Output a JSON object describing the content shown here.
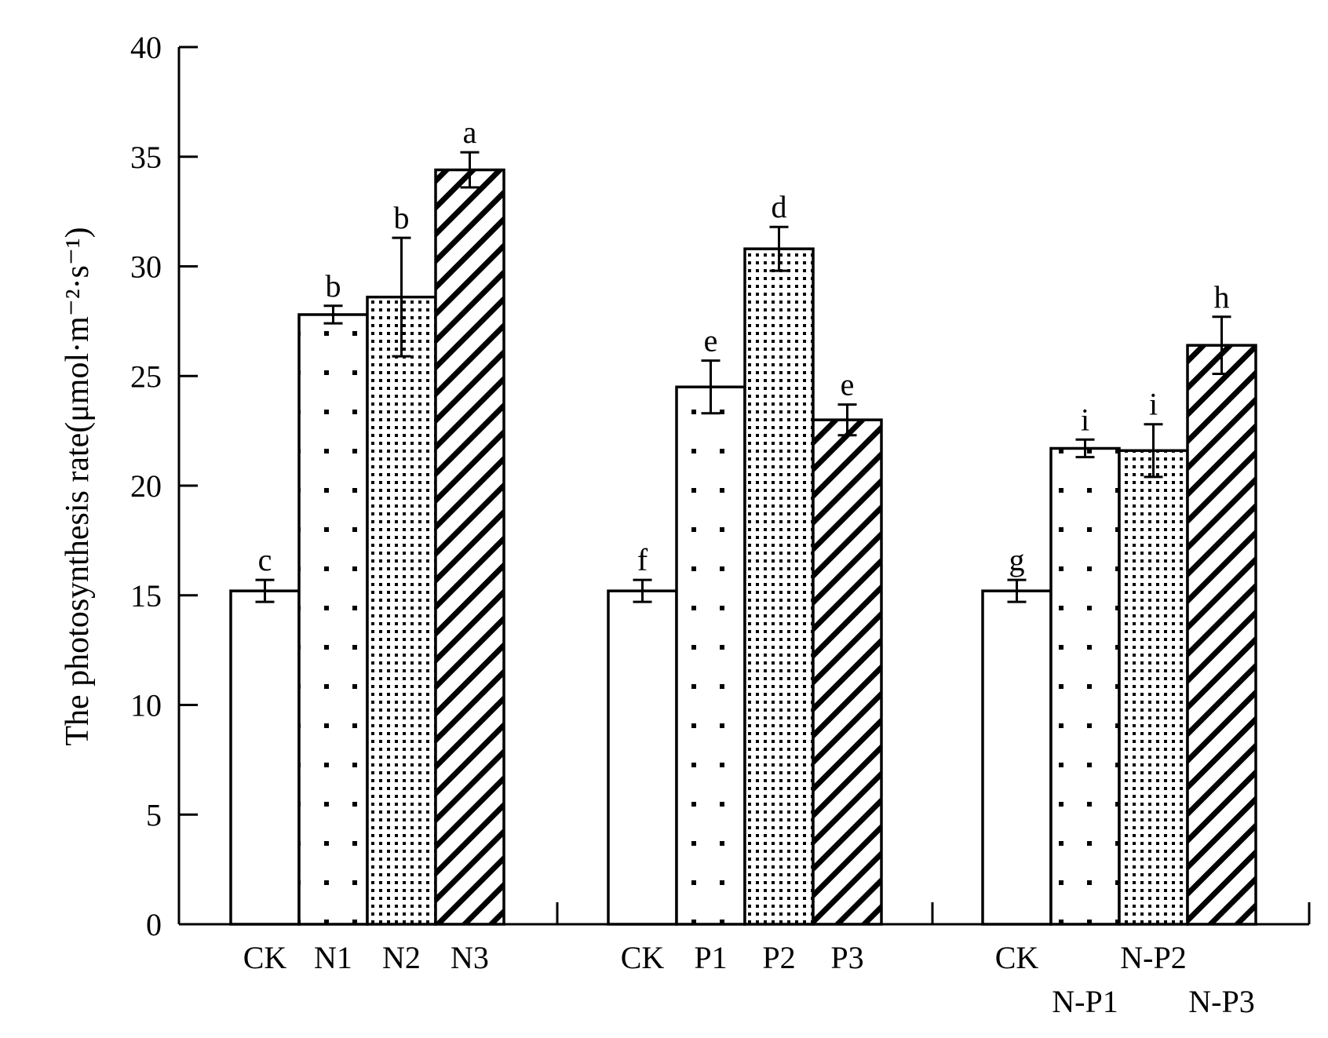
{
  "chart_data": {
    "type": "bar",
    "ylabel": "The photosynthesis rate(μmol·m⁻²·s⁻¹)",
    "ylim": [
      0,
      40
    ],
    "yticks": [
      0,
      5,
      10,
      15,
      20,
      25,
      30,
      35,
      40
    ],
    "grid": false,
    "groups": [
      {
        "bars": [
          {
            "category": "CK",
            "value": 15.2,
            "error": 0.5,
            "sig": "c",
            "pattern": "none"
          },
          {
            "category": "N1",
            "value": 27.8,
            "error": 0.4,
            "sig": "b",
            "pattern": "sparse-dots"
          },
          {
            "category": "N2",
            "value": 28.6,
            "error": 2.7,
            "sig": "b",
            "pattern": "dense-dots"
          },
          {
            "category": "N3",
            "value": 34.4,
            "error": 0.8,
            "sig": "a",
            "pattern": "diagonal-lines"
          }
        ]
      },
      {
        "bars": [
          {
            "category": "CK",
            "value": 15.2,
            "error": 0.5,
            "sig": "f",
            "pattern": "none"
          },
          {
            "category": "P1",
            "value": 24.5,
            "error": 1.2,
            "sig": "e",
            "pattern": "sparse-dots"
          },
          {
            "category": "P2",
            "value": 30.8,
            "error": 1.0,
            "sig": "d",
            "pattern": "dense-dots"
          },
          {
            "category": "P3",
            "value": 23.0,
            "error": 0.7,
            "sig": "e",
            "pattern": "diagonal-lines"
          }
        ]
      },
      {
        "bars": [
          {
            "category": "CK",
            "value": 15.2,
            "error": 0.5,
            "sig": "g",
            "pattern": "none"
          },
          {
            "category": "N-P1",
            "value": 21.7,
            "error": 0.4,
            "sig": "i",
            "pattern": "sparse-dots"
          },
          {
            "category": "N-P2",
            "value": 21.6,
            "error": 1.2,
            "sig": "i",
            "pattern": "dense-dots"
          },
          {
            "category": "N-P3",
            "value": 26.4,
            "error": 1.3,
            "sig": "h",
            "pattern": "diagonal-lines"
          }
        ]
      }
    ],
    "colors": {
      "stroke": "#000000",
      "fill": "#ffffff"
    }
  }
}
